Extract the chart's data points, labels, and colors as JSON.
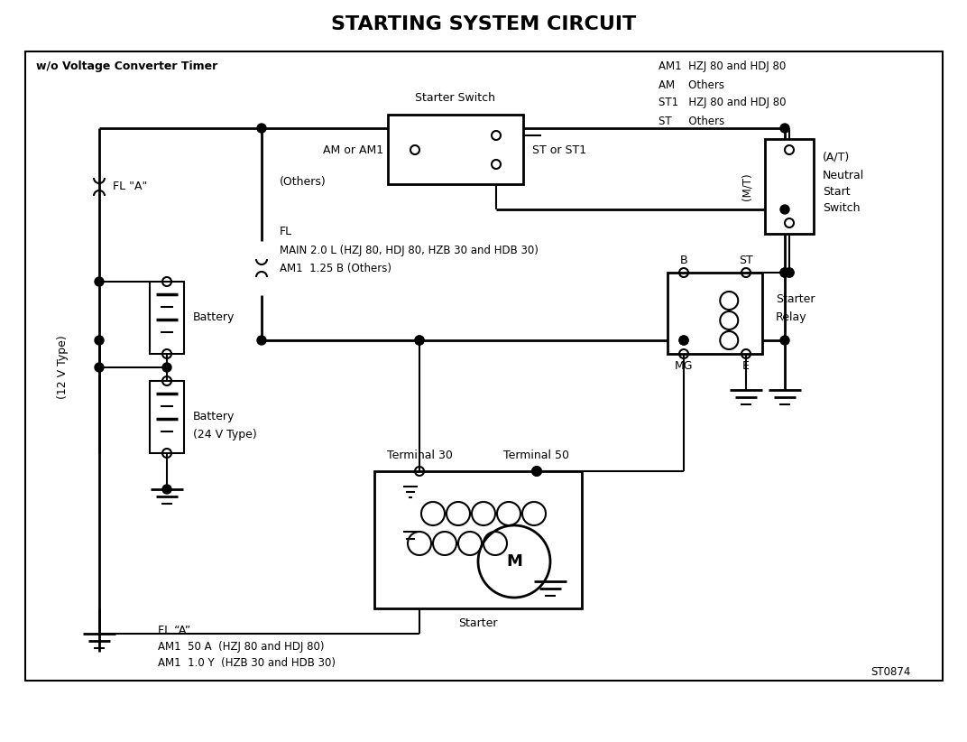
{
  "title": "STARTING SYSTEM CIRCUIT",
  "subtitle_left": "w/o Voltage Converter Timer",
  "legend_lines": [
    "AM1  HZJ 80 and HDJ 80",
    "AM    Others",
    "ST1   HZJ 80 and HDJ 80",
    "ST     Others"
  ],
  "st_code": "ST0874",
  "bg_color": "#ffffff",
  "line_color": "#000000",
  "title_fontsize": 16,
  "body_fontsize": 9,
  "small_fontsize": 8,
  "tiny_fontsize": 7.5
}
